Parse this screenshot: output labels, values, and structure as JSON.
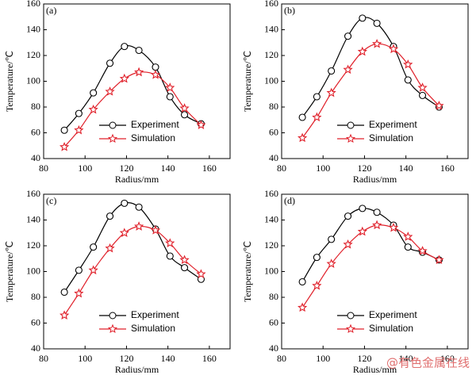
{
  "chart_data": [
    {
      "type": "line",
      "panel_label": "(a)",
      "xlabel": "Radius/mm",
      "ylabel": "Temperature/℃",
      "xlim": [
        80,
        170
      ],
      "ylim": [
        40,
        160
      ],
      "xticks": [
        80,
        100,
        120,
        140,
        160
      ],
      "yticks": [
        40,
        60,
        80,
        100,
        120,
        140,
        160
      ],
      "legend": "lower center",
      "x": [
        90,
        97,
        104,
        112,
        119,
        126,
        134,
        141,
        148,
        156
      ],
      "series": [
        {
          "name": "Experiment",
          "color": "#000000",
          "marker": "circle",
          "values": [
            62,
            75,
            91,
            114,
            127,
            124,
            111,
            88,
            74,
            67
          ]
        },
        {
          "name": "Simulation",
          "color": "#e0202a",
          "marker": "star",
          "values": [
            49,
            62,
            78,
            92,
            102,
            107,
            105,
            95,
            79,
            66
          ]
        }
      ]
    },
    {
      "type": "line",
      "panel_label": "(b)",
      "xlabel": "Radius/mm",
      "ylabel": "Temperature/℃",
      "xlim": [
        80,
        170
      ],
      "ylim": [
        40,
        160
      ],
      "xticks": [
        80,
        100,
        120,
        140,
        160
      ],
      "yticks": [
        40,
        60,
        80,
        100,
        120,
        140,
        160
      ],
      "legend": "lower center",
      "x": [
        90,
        97,
        104,
        112,
        119,
        126,
        134,
        141,
        148,
        156
      ],
      "series": [
        {
          "name": "Experiment",
          "color": "#000000",
          "marker": "circle",
          "values": [
            72,
            88,
            108,
            135,
            149,
            145,
            127,
            101,
            89,
            80
          ]
        },
        {
          "name": "Simulation",
          "color": "#e0202a",
          "marker": "star",
          "values": [
            56,
            72,
            91,
            109,
            123,
            129,
            125,
            113,
            95,
            81
          ]
        }
      ]
    },
    {
      "type": "line",
      "panel_label": "(c)",
      "xlabel": "Radius/mm",
      "ylabel": "Temperature/℃",
      "xlim": [
        80,
        170
      ],
      "ylim": [
        40,
        160
      ],
      "xticks": [
        80,
        100,
        120,
        140,
        160
      ],
      "yticks": [
        40,
        60,
        80,
        100,
        120,
        140,
        160
      ],
      "legend": "lower center",
      "x": [
        90,
        97,
        104,
        112,
        119,
        126,
        134,
        141,
        148,
        156
      ],
      "series": [
        {
          "name": "Experiment",
          "color": "#000000",
          "marker": "circle",
          "values": [
            84,
            101,
            119,
            143,
            153,
            150,
            133,
            112,
            103,
            94
          ]
        },
        {
          "name": "Simulation",
          "color": "#e0202a",
          "marker": "star",
          "values": [
            66,
            83,
            101,
            118,
            130,
            135,
            132,
            122,
            109,
            98
          ]
        }
      ]
    },
    {
      "type": "line",
      "panel_label": "(d)",
      "xlabel": "Radius/mm",
      "ylabel": "Temperature/℃",
      "xlim": [
        80,
        170
      ],
      "ylim": [
        40,
        160
      ],
      "xticks": [
        80,
        100,
        120,
        140,
        160
      ],
      "yticks": [
        40,
        60,
        80,
        100,
        120,
        140,
        160
      ],
      "legend": "lower center",
      "x": [
        90,
        97,
        104,
        112,
        119,
        126,
        134,
        141,
        148,
        156
      ],
      "series": [
        {
          "name": "Experiment",
          "color": "#000000",
          "marker": "circle",
          "values": [
            92,
            111,
            125,
            143,
            149,
            146,
            136,
            119,
            115,
            109
          ]
        },
        {
          "name": "Simulation",
          "color": "#e0202a",
          "marker": "star",
          "values": [
            72,
            89,
            106,
            121,
            131,
            136,
            134,
            127,
            116,
            109
          ]
        }
      ]
    }
  ],
  "watermark": "@有色金属在线"
}
